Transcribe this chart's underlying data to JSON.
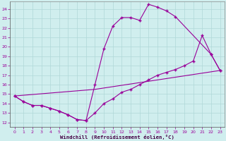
{
  "xlabel": "Windchill (Refroidissement éolien,°C)",
  "bg_color": "#d0eeee",
  "line_color": "#990099",
  "grid_color": "#b0d8d8",
  "xlim": [
    -0.5,
    23.5
  ],
  "ylim": [
    11.5,
    24.8
  ],
  "xticks": [
    0,
    1,
    2,
    3,
    4,
    5,
    6,
    7,
    8,
    9,
    10,
    11,
    12,
    13,
    14,
    15,
    16,
    17,
    18,
    19,
    20,
    21,
    22,
    23
  ],
  "yticks": [
    12,
    13,
    14,
    15,
    16,
    17,
    18,
    19,
    20,
    21,
    22,
    23,
    24
  ],
  "curve1_x": [
    0,
    1,
    2,
    3,
    4,
    5,
    6,
    7,
    8,
    9,
    10,
    11,
    12,
    13,
    14,
    15,
    16,
    17,
    18,
    22,
    23
  ],
  "curve1_y": [
    14.8,
    14.2,
    13.8,
    13.8,
    13.5,
    13.2,
    12.8,
    12.3,
    12.2,
    16.0,
    19.8,
    22.2,
    23.1,
    23.1,
    22.8,
    24.5,
    24.2,
    23.8,
    23.2,
    19.2,
    17.5
  ],
  "curve2_x": [
    0,
    1,
    2,
    3,
    4,
    5,
    6,
    7,
    8,
    9,
    10,
    11,
    12,
    13,
    14,
    15,
    16,
    17,
    18,
    19,
    20,
    21,
    22,
    23
  ],
  "curve2_y": [
    14.8,
    14.2,
    13.8,
    13.8,
    13.5,
    13.2,
    12.8,
    12.3,
    12.2,
    13.0,
    14.0,
    14.5,
    15.2,
    15.5,
    16.0,
    16.5,
    17.0,
    17.3,
    17.6,
    18.0,
    18.5,
    21.2,
    19.2,
    17.5
  ],
  "curve3_x": [
    0,
    9,
    23
  ],
  "curve3_y": [
    14.8,
    15.5,
    17.5
  ]
}
